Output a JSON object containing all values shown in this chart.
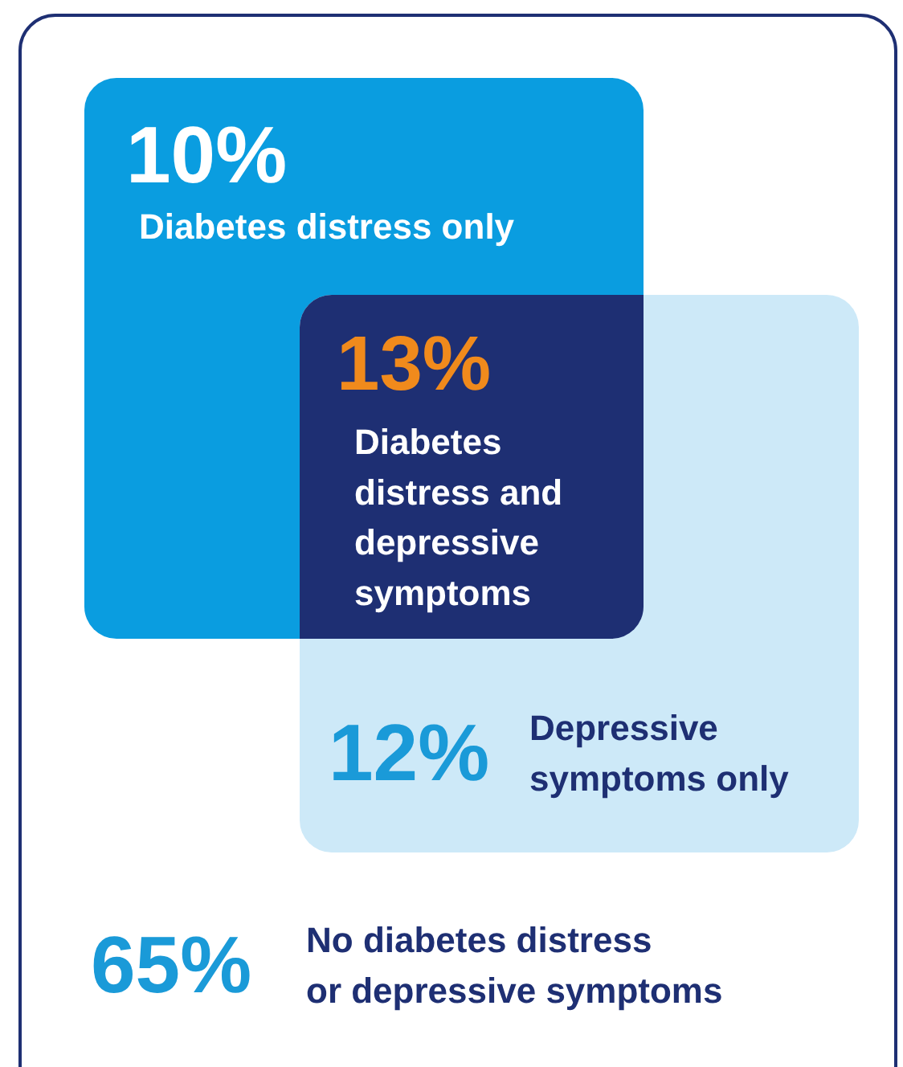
{
  "chart_data": {
    "type": "other",
    "categories": [
      "Diabetes distress only",
      "Diabetes distress and depressive symptoms",
      "Depressive symptoms only",
      "No diabetes distress or depressive symptoms"
    ],
    "values": [
      10,
      13,
      12,
      65
    ],
    "value_labels": [
      "10%",
      "13%",
      "12%",
      "65%"
    ],
    "colors": [
      "#0a9de0",
      "#1e2f73",
      "#cde9f8",
      "#ffffff"
    ]
  }
}
